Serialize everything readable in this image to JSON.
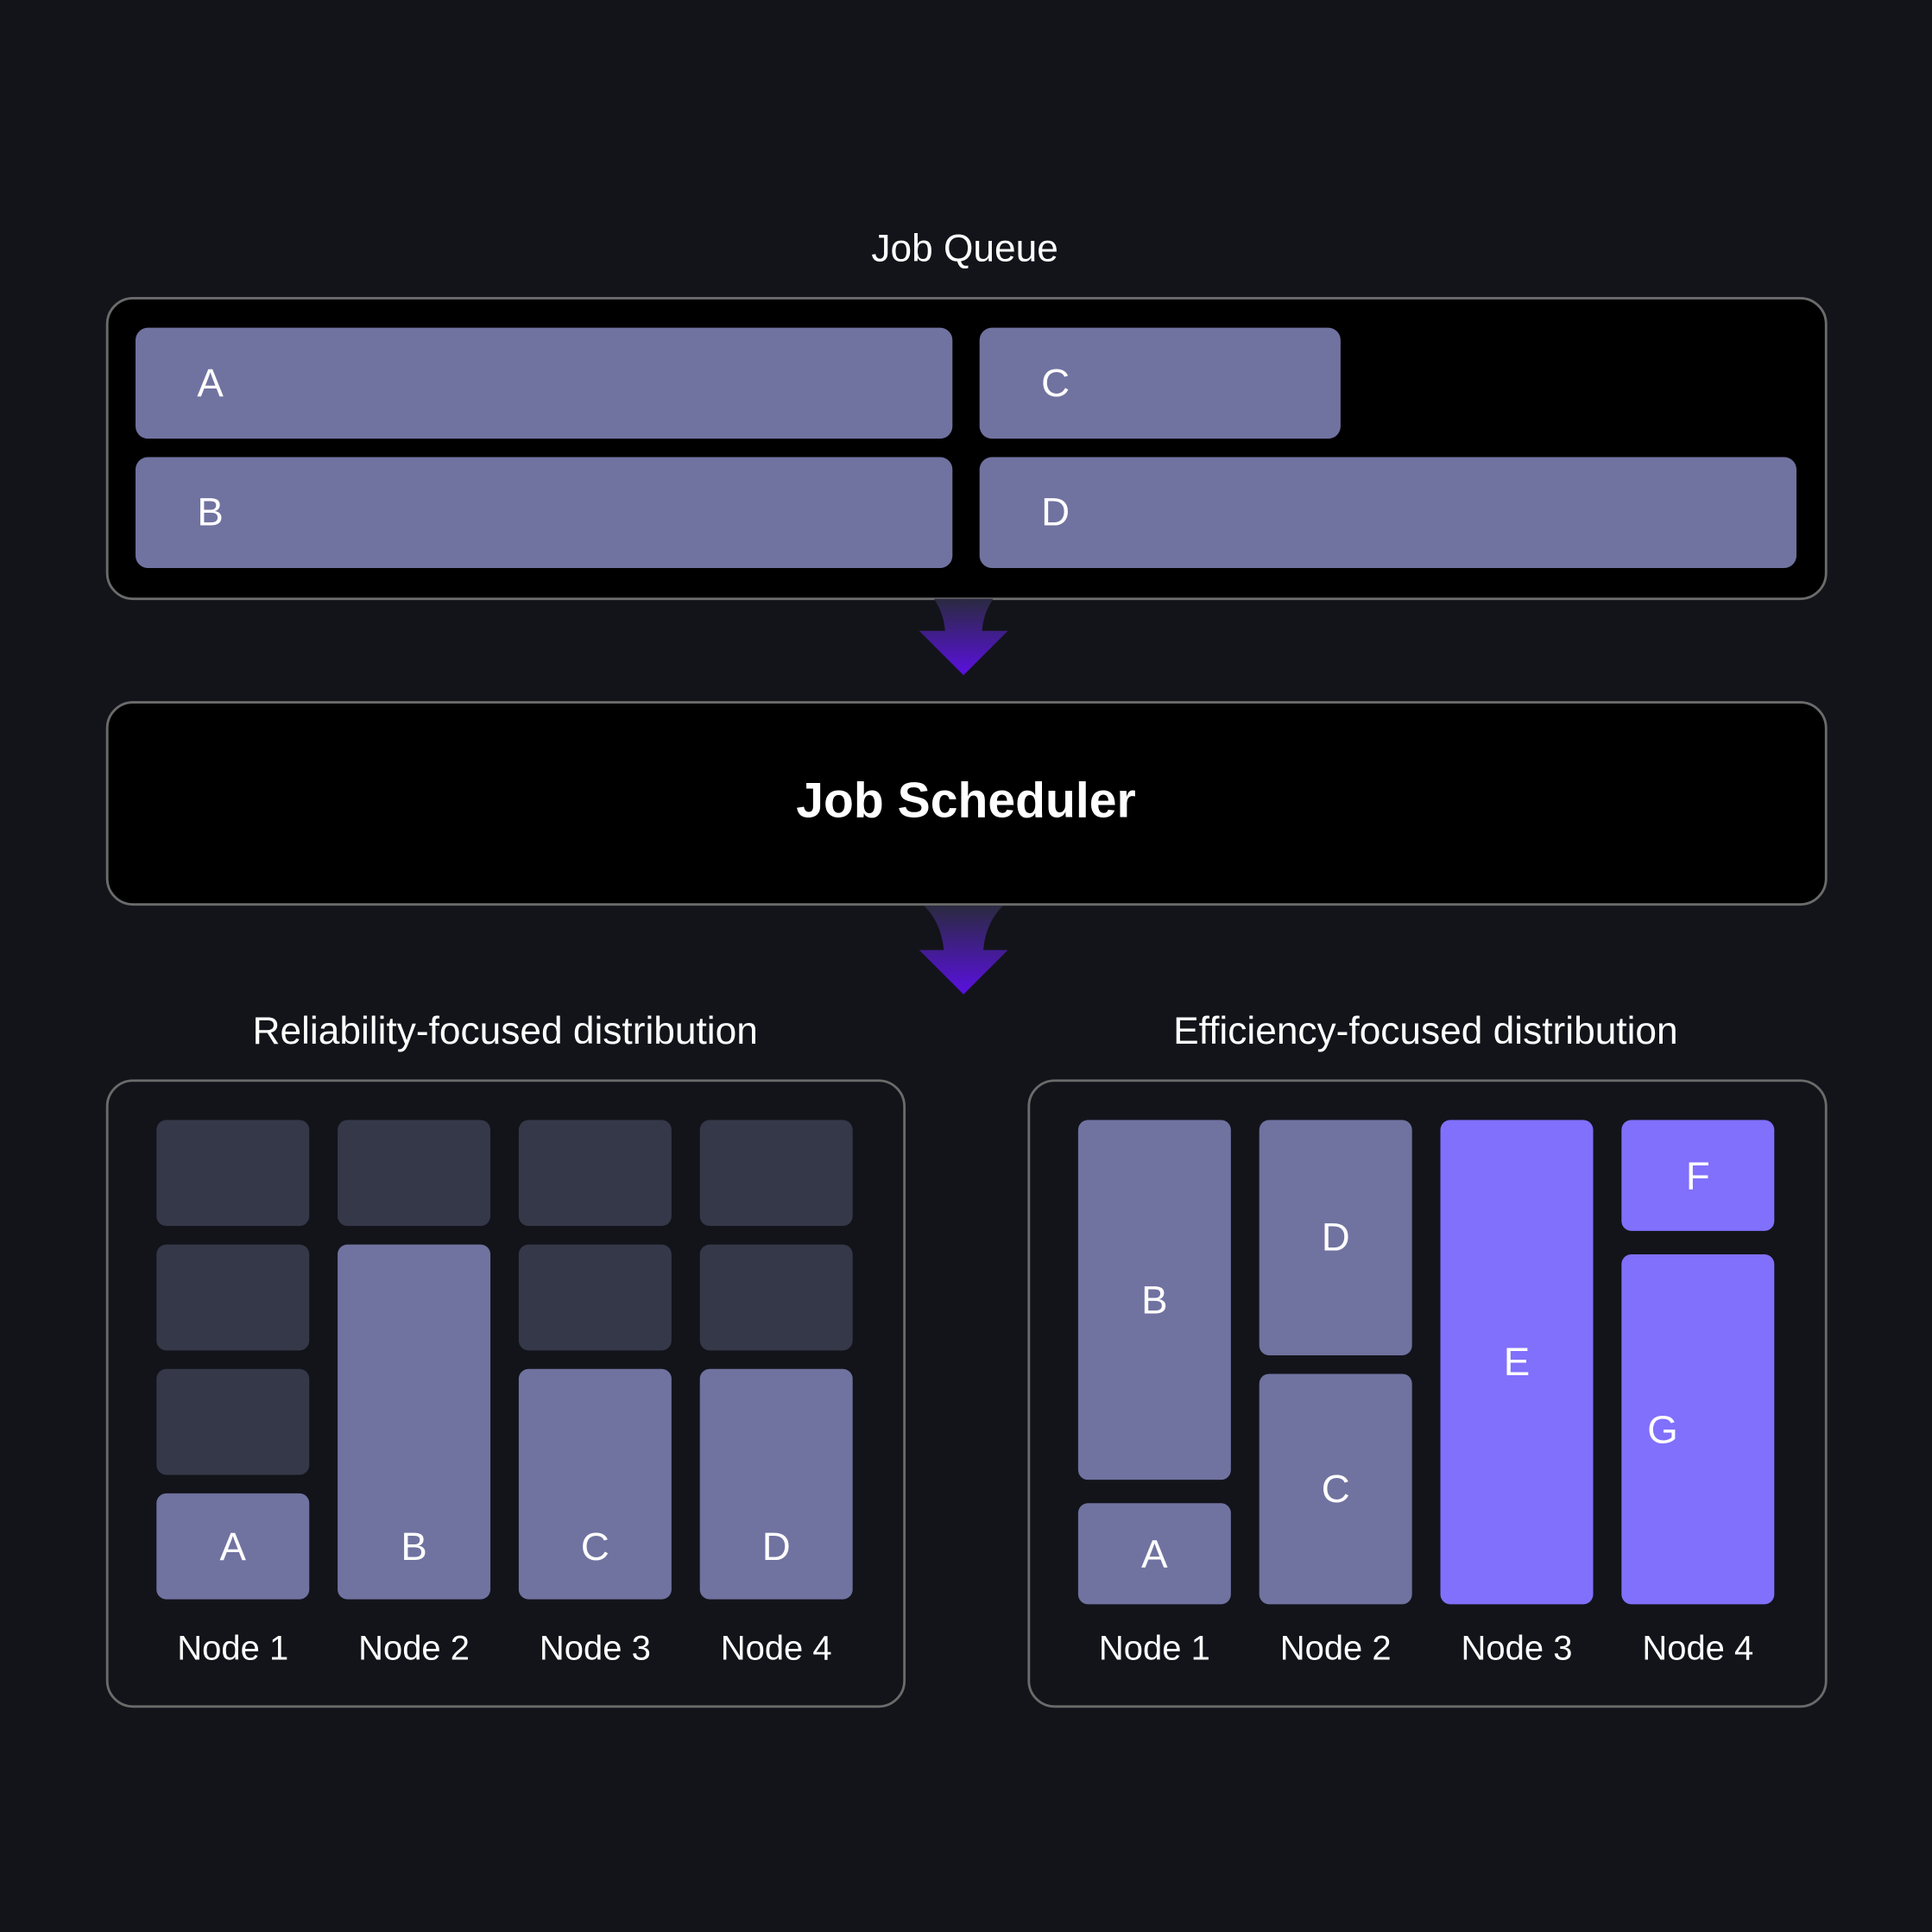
{
  "colors": {
    "background": "#13141a",
    "job": "#7072a0",
    "slot_empty": "#343848",
    "job_new": "#8070fc",
    "arrow": "#5a10e0"
  },
  "queue": {
    "title": "Job Queue",
    "jobs": [
      "A",
      "B",
      "C",
      "D"
    ]
  },
  "scheduler": {
    "title": "Job Scheduler"
  },
  "reliability": {
    "title": "Reliability-focused distribution",
    "nodes": [
      "Node 1",
      "Node 2",
      "Node 3",
      "Node 4"
    ],
    "jobs": [
      "A",
      "B",
      "C",
      "D"
    ]
  },
  "efficiency": {
    "title": "Efficiency-focused distribution",
    "nodes": [
      "Node 1",
      "Node 2",
      "Node 3",
      "Node 4"
    ],
    "jobs": [
      "B",
      "A",
      "D",
      "C",
      "E",
      "F",
      "G"
    ]
  }
}
